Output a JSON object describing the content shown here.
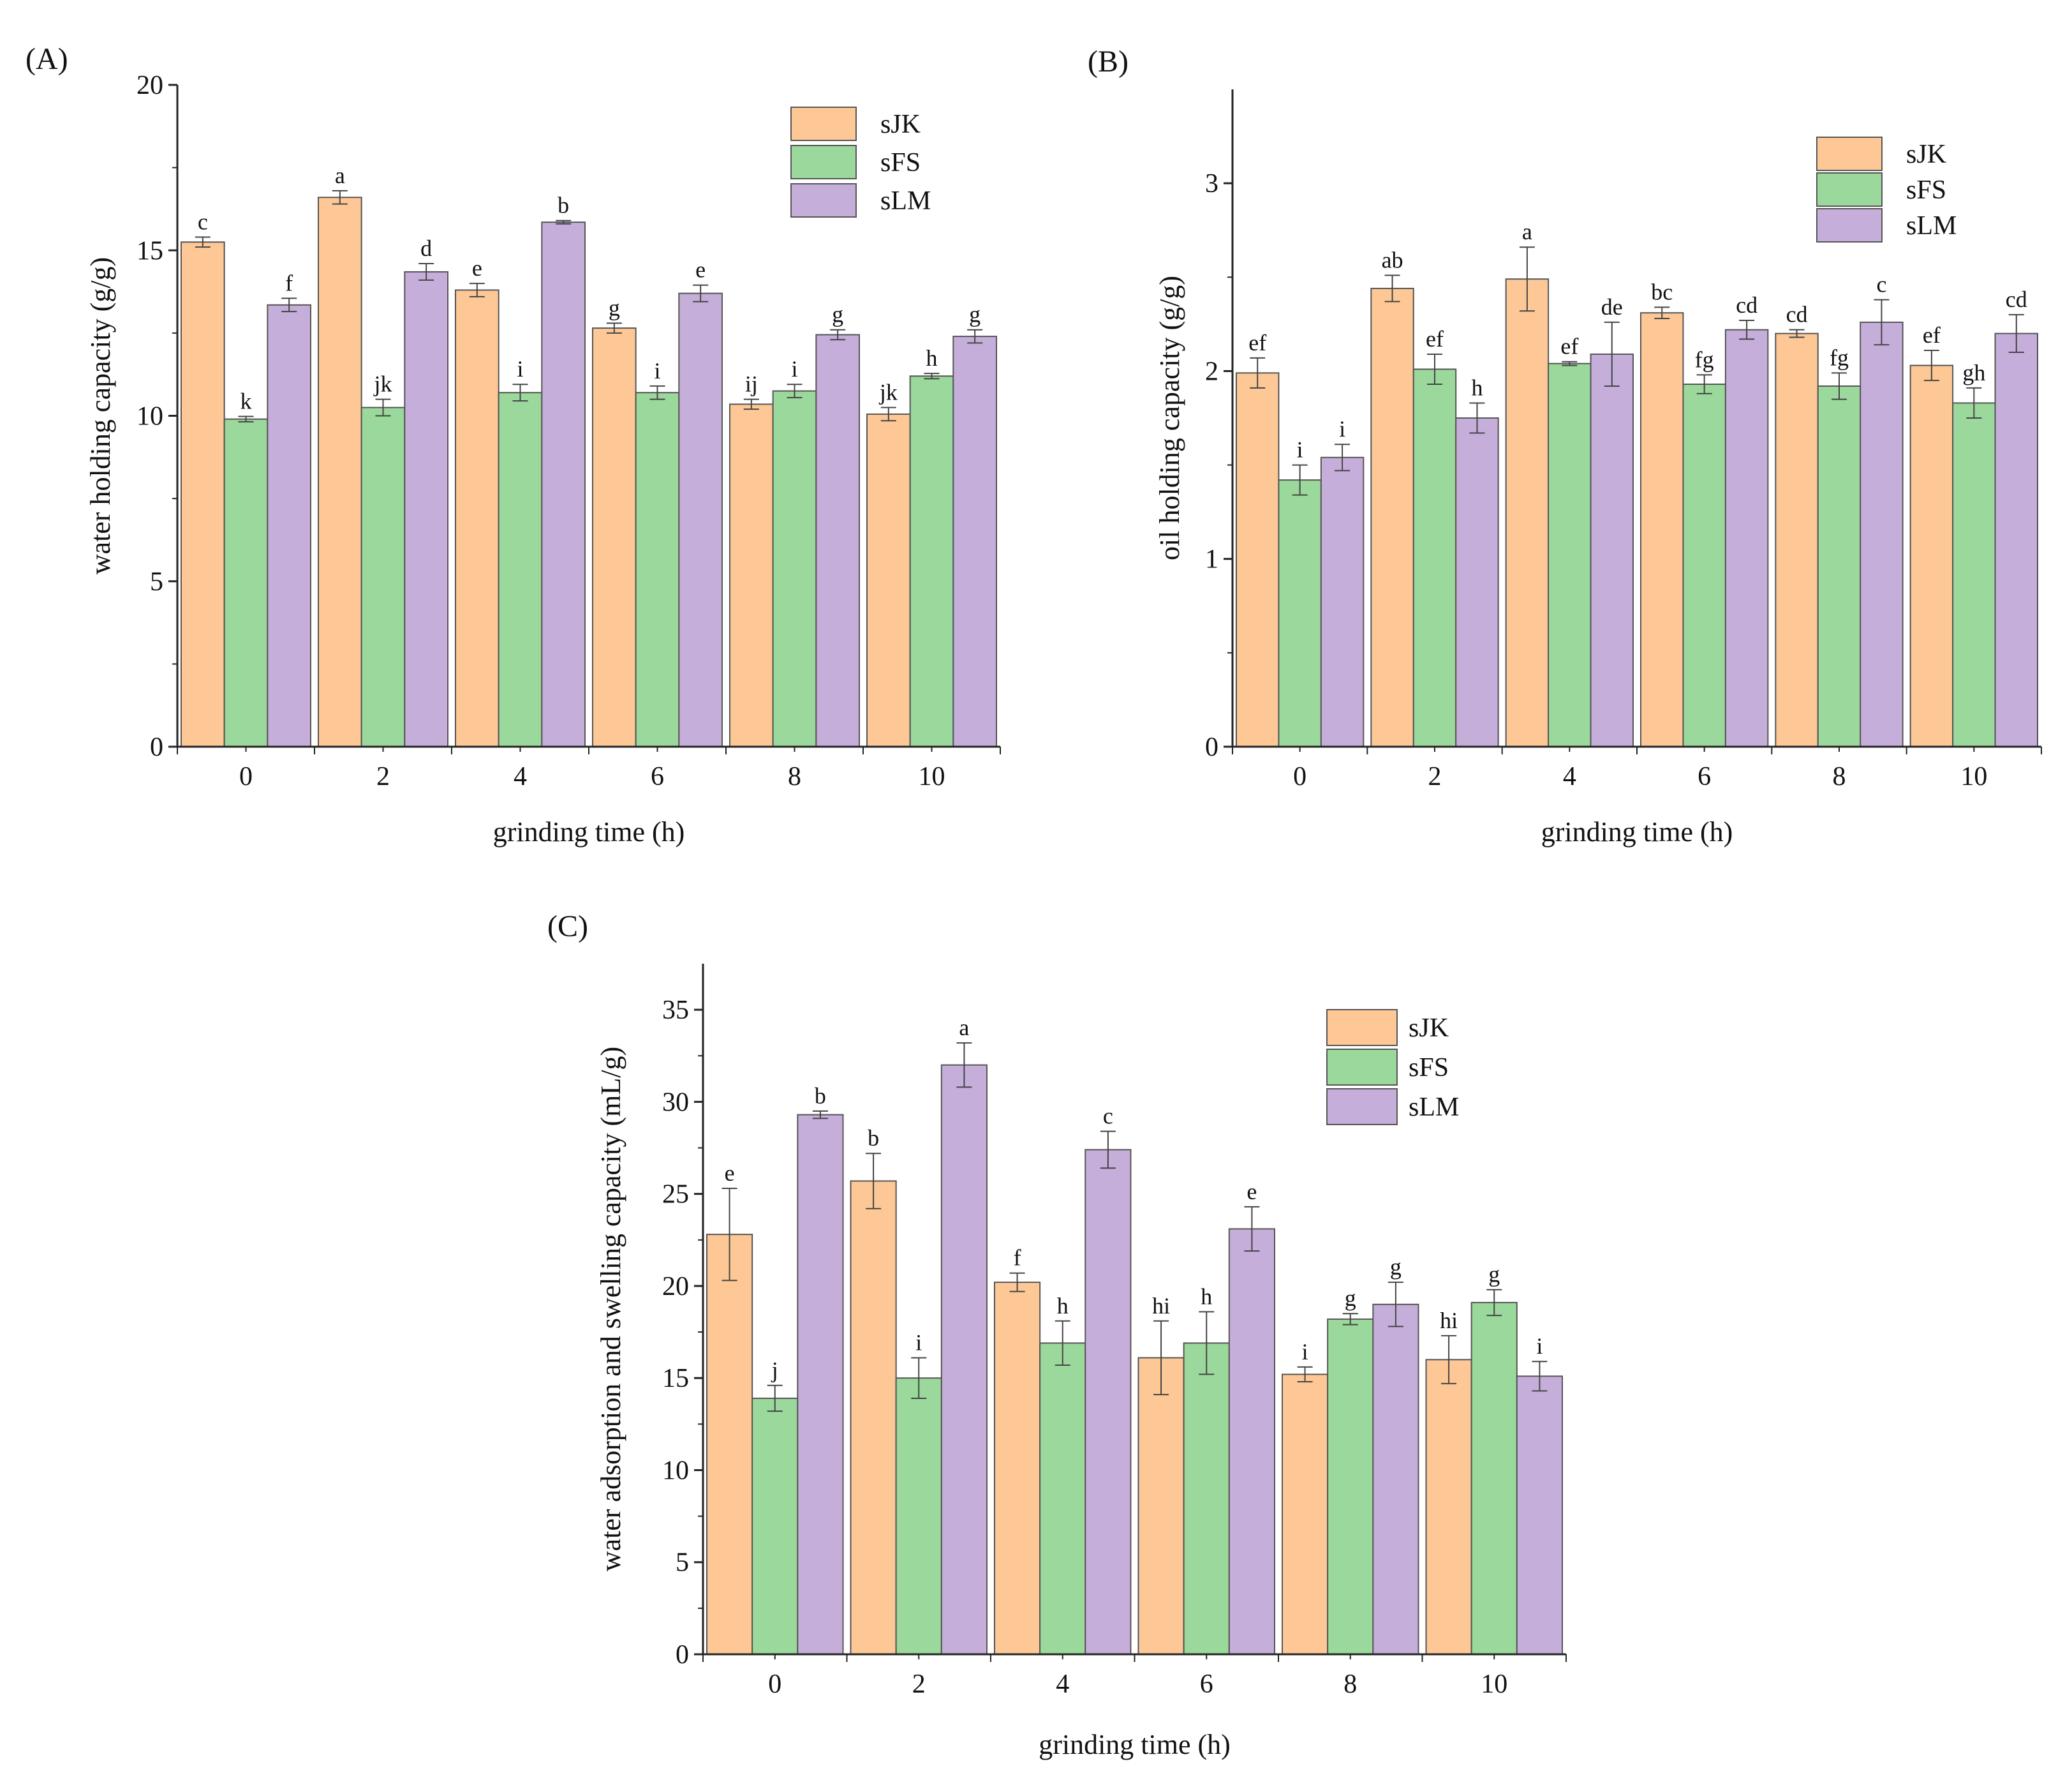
{
  "colors": {
    "sJK": "#FDC896",
    "sFS": "#9BD89B",
    "sLM": "#C6AEDA",
    "bar_stroke": "#555555",
    "axis": "#222222",
    "error_bar": "#444444"
  },
  "chart_data": [
    {
      "type": "bar",
      "panel": "(A)",
      "title": "",
      "xlabel": "grinding time (h)",
      "ylabel": "water holding capacity (g/g)",
      "categories": [
        "0",
        "2",
        "4",
        "6",
        "8",
        "10"
      ],
      "ylim": [
        0,
        20
      ],
      "yticks": [
        0,
        5,
        10,
        15,
        20
      ],
      "yticks_labels": [
        "0",
        "5",
        "10",
        "15",
        "20"
      ],
      "legend_position": "top-right",
      "series": [
        {
          "name": "sJK",
          "values": [
            15.25,
            16.6,
            13.8,
            12.65,
            10.35,
            10.05
          ],
          "errors": [
            0.15,
            0.2,
            0.2,
            0.15,
            0.15,
            0.2
          ],
          "letters": [
            "c",
            "a",
            "e",
            "g",
            "ij",
            "jk"
          ]
        },
        {
          "name": "sFS",
          "values": [
            9.9,
            10.25,
            10.7,
            10.7,
            10.75,
            11.2
          ],
          "errors": [
            0.08,
            0.25,
            0.25,
            0.2,
            0.2,
            0.08
          ],
          "letters": [
            "k",
            "jk",
            "i",
            "i",
            "i",
            "h"
          ]
        },
        {
          "name": "sLM",
          "values": [
            13.35,
            14.35,
            15.85,
            13.7,
            12.45,
            12.4
          ],
          "errors": [
            0.2,
            0.25,
            0.05,
            0.25,
            0.15,
            0.2
          ],
          "letters": [
            "f",
            "d",
            "b",
            "e",
            "g",
            "g"
          ]
        }
      ]
    },
    {
      "type": "bar",
      "panel": "(B)",
      "title": "",
      "xlabel": "grinding time (h)",
      "ylabel": "oil holding capacity (g/g)",
      "categories": [
        "0",
        "2",
        "4",
        "6",
        "8",
        "10"
      ],
      "ylim": [
        0,
        3.5
      ],
      "yticks": [
        0,
        1,
        2,
        3
      ],
      "yticks_labels": [
        "0",
        "1",
        "2",
        "3"
      ],
      "legend_position": "top-right",
      "series": [
        {
          "name": "sJK",
          "values": [
            1.99,
            2.44,
            2.49,
            2.31,
            2.2,
            2.03
          ],
          "errors": [
            0.08,
            0.07,
            0.17,
            0.03,
            0.02,
            0.08
          ],
          "letters": [
            "ef",
            "ab",
            "a",
            "bc",
            "cd",
            "ef"
          ]
        },
        {
          "name": "sFS",
          "values": [
            1.42,
            2.01,
            2.04,
            1.93,
            1.92,
            1.83
          ],
          "errors": [
            0.08,
            0.08,
            0.01,
            0.05,
            0.07,
            0.08
          ],
          "letters": [
            "i",
            "ef",
            "ef",
            "fg",
            "fg",
            "gh"
          ]
        },
        {
          "name": "sLM",
          "values": [
            1.54,
            1.75,
            2.09,
            2.22,
            2.26,
            2.2
          ],
          "errors": [
            0.07,
            0.08,
            0.17,
            0.05,
            0.12,
            0.1
          ],
          "letters": [
            "i",
            "h",
            "de",
            "cd",
            "c",
            "cd"
          ]
        }
      ]
    },
    {
      "type": "bar",
      "panel": "(C)",
      "title": "",
      "xlabel": "grinding time (h)",
      "ylabel": "water adsorption and swelling capacity (mL/g)",
      "categories": [
        "0",
        "2",
        "4",
        "6",
        "8",
        "10"
      ],
      "ylim": [
        0,
        37.5
      ],
      "yticks": [
        0,
        5,
        10,
        15,
        20,
        25,
        30,
        35
      ],
      "yticks_labels": [
        "0",
        "5",
        "10",
        "15",
        "20",
        "25",
        "30",
        "35"
      ],
      "legend_position": "top-right",
      "series": [
        {
          "name": "sJK",
          "values": [
            22.8,
            25.7,
            20.2,
            16.1,
            15.2,
            16.0
          ],
          "errors": [
            2.5,
            1.5,
            0.5,
            2.0,
            0.4,
            1.3
          ],
          "letters": [
            "e",
            "b",
            "f",
            "hi",
            "i",
            "hi"
          ]
        },
        {
          "name": "sFS",
          "values": [
            13.9,
            15.0,
            16.9,
            16.9,
            18.2,
            19.1
          ],
          "errors": [
            0.7,
            1.1,
            1.2,
            1.7,
            0.3,
            0.7
          ],
          "letters": [
            "j",
            "i",
            "h",
            "h",
            "g",
            "g"
          ]
        },
        {
          "name": "sLM",
          "values": [
            29.3,
            32.0,
            27.4,
            23.1,
            19.0,
            15.1
          ],
          "errors": [
            0.2,
            1.2,
            1.0,
            1.2,
            1.2,
            0.8
          ],
          "letters": [
            "b",
            "a",
            "c",
            "e",
            "g",
            "i"
          ]
        }
      ]
    }
  ]
}
